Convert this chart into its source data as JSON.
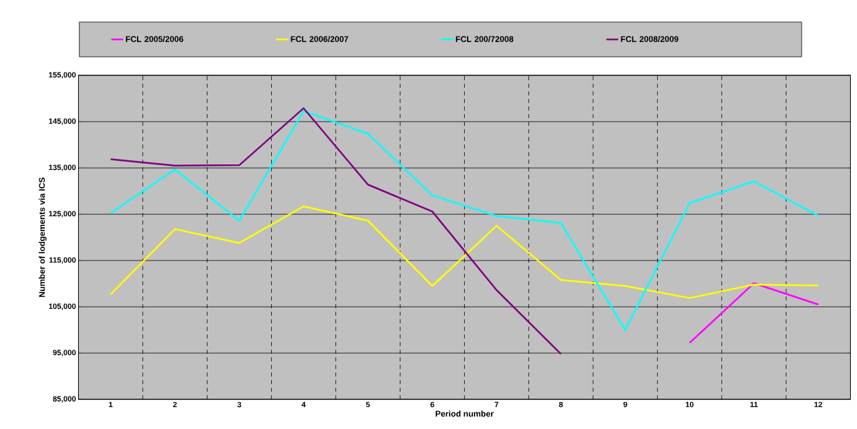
{
  "chart_data": {
    "type": "line",
    "xlabel": "Period number",
    "ylabel": "Number of lodgements via ICS",
    "categories": [
      "1",
      "2",
      "3",
      "4",
      "5",
      "6",
      "7",
      "8",
      "9",
      "10",
      "11",
      "12"
    ],
    "series": [
      {
        "name": "FCL 2005/2006",
        "color": "#ff00ff",
        "values": [
          null,
          null,
          null,
          null,
          null,
          null,
          null,
          null,
          null,
          97200,
          110100,
          105500
        ]
      },
      {
        "name": "FCL 2006/2007",
        "color": "#ffff00",
        "values": [
          107700,
          121800,
          118800,
          126700,
          123600,
          109500,
          122500,
          110800,
          109500,
          106900,
          109800,
          109600
        ]
      },
      {
        "name": "FCL 200/72008",
        "color": "#00ffff",
        "values": [
          125200,
          134700,
          123600,
          147300,
          142400,
          129100,
          124600,
          123100,
          100000,
          127400,
          132100,
          124700
        ]
      },
      {
        "name": "FCL 2008/2009",
        "color": "#800080",
        "values": [
          136900,
          135500,
          135600,
          147900,
          131400,
          125600,
          108600,
          94800,
          null,
          null,
          null,
          null
        ]
      }
    ],
    "ylim": [
      85000,
      155000
    ],
    "yticks": [
      {
        "value": 85000,
        "label": "85,000"
      },
      {
        "value": 95000,
        "label": "95,000"
      },
      {
        "value": 105000,
        "label": "105,000"
      },
      {
        "value": 115000,
        "label": "115,000"
      },
      {
        "value": 125000,
        "label": "125,000"
      },
      {
        "value": 135000,
        "label": "135,000"
      },
      {
        "value": 145000,
        "label": "145,000"
      },
      {
        "value": 155000,
        "label": "155,000"
      }
    ],
    "grid": true,
    "legend": "top",
    "marker": "none",
    "line_style": "solid"
  }
}
